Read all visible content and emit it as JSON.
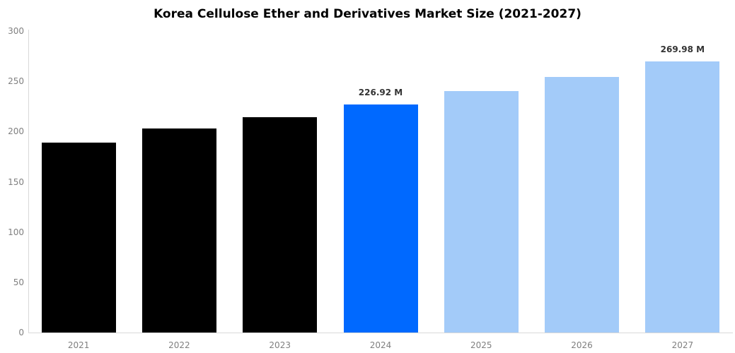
{
  "chart_data": {
    "type": "bar",
    "title": "Korea Cellulose Ether and Derivatives Market Size (2021-2027)",
    "categories": [
      "2021",
      "2022",
      "2023",
      "2024",
      "2025",
      "2026",
      "2027"
    ],
    "values": [
      189,
      203,
      214,
      226.92,
      240,
      254,
      269.98
    ],
    "unit": "M",
    "bar_labels": [
      "",
      "",
      "",
      "226.92 M",
      "",
      "",
      "269.98 M"
    ],
    "bar_colors": [
      "#000000",
      "#000000",
      "#000000",
      "#0069ff",
      "#a3cbf9",
      "#a3cbf9",
      "#a3cbf9"
    ],
    "xlabel": "",
    "ylabel": "",
    "ylim": [
      0,
      300
    ],
    "yticks": [
      0,
      50,
      100,
      150,
      200,
      250,
      300
    ],
    "grid": false,
    "legend": null,
    "colors": {
      "axis_line": "#d9d9d9",
      "tick_label": "#7f7f7f",
      "value_label": "#333333",
      "title": "#000000",
      "highlight_bar": "#0069ff",
      "forecast_bar": "#a3cbf9",
      "historical_bar": "#000000",
      "background": "#ffffff"
    }
  }
}
